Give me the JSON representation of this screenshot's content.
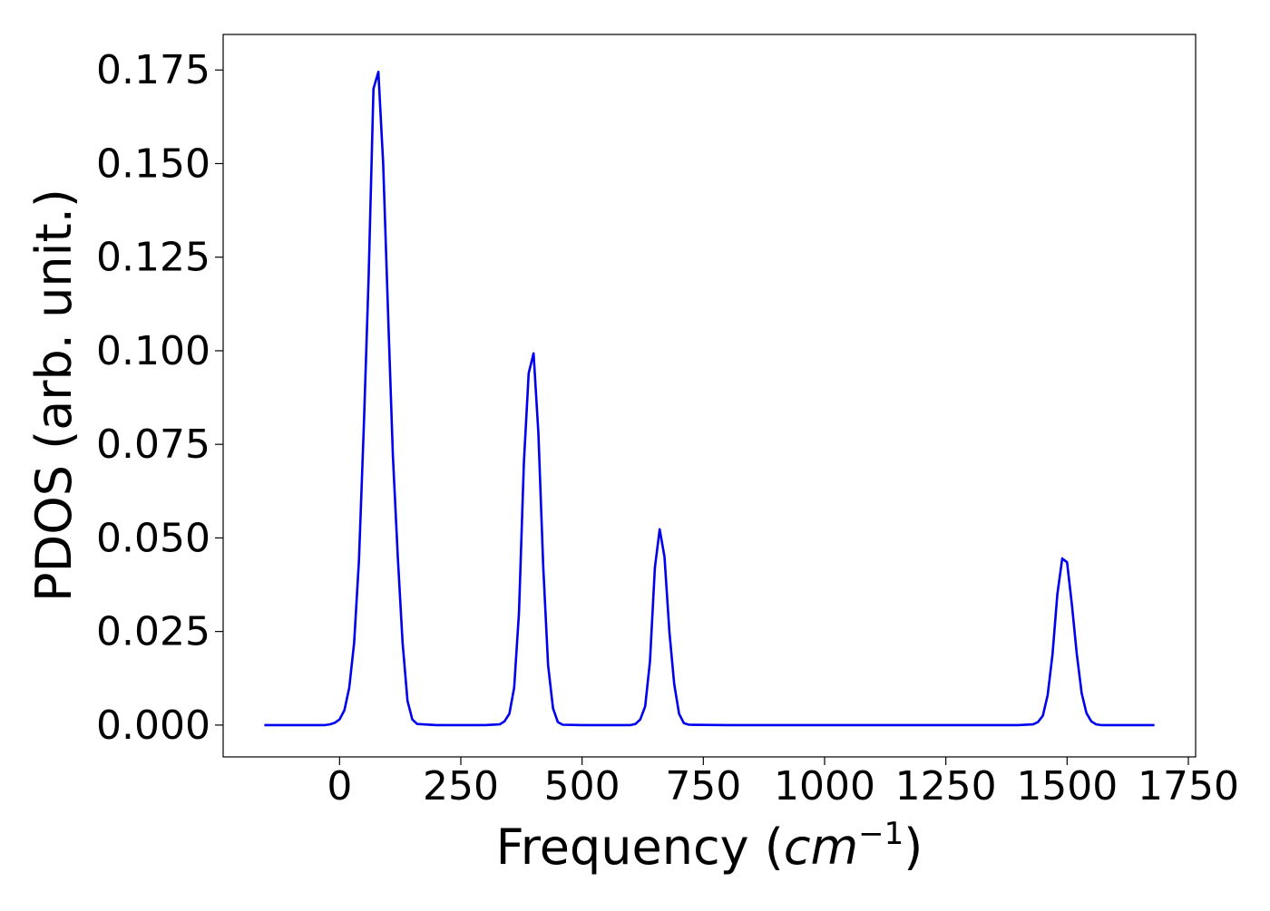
{
  "chart_data": {
    "type": "line",
    "title": "",
    "xlabel": "Frequency",
    "xlabel_unit_base": "cm",
    "xlabel_unit_exp": "−1",
    "ylabel": "PDOS (arb. unit.)",
    "xlim": [
      -240,
      1765
    ],
    "ylim": [
      -0.0085,
      0.1845
    ],
    "xticks": [
      0,
      250,
      500,
      750,
      1000,
      1250,
      1500,
      1750
    ],
    "xtick_labels": [
      "0",
      "250",
      "500",
      "750",
      "1000",
      "1250",
      "1500",
      "1750"
    ],
    "yticks": [
      0.0,
      0.025,
      0.05,
      0.075,
      0.1,
      0.125,
      0.15,
      0.175
    ],
    "ytick_labels": [
      "0.000",
      "0.025",
      "0.050",
      "0.075",
      "0.100",
      "0.125",
      "0.150",
      "0.175"
    ],
    "grid": false,
    "legend": "none",
    "series": [
      {
        "color": "#0000ee",
        "x": [
          -155,
          -100,
          -50,
          -30,
          -20,
          -10,
          0,
          10,
          20,
          30,
          40,
          50,
          60,
          70,
          80,
          90,
          100,
          110,
          120,
          130,
          140,
          150,
          160,
          200,
          250,
          300,
          330,
          340,
          350,
          360,
          370,
          380,
          390,
          400,
          410,
          420,
          430,
          440,
          450,
          460,
          500,
          550,
          600,
          610,
          620,
          630,
          640,
          650,
          660,
          670,
          680,
          690,
          700,
          710,
          720,
          800,
          1000,
          1200,
          1400,
          1430,
          1440,
          1450,
          1460,
          1470,
          1480,
          1490,
          1500,
          1510,
          1520,
          1530,
          1540,
          1550,
          1560,
          1570,
          1580,
          1600,
          1680
        ],
        "y": [
          0,
          0,
          0,
          0,
          0.0002,
          0.0006,
          0.0015,
          0.004,
          0.01,
          0.022,
          0.044,
          0.08,
          0.12,
          0.17,
          0.1745,
          0.15,
          0.11,
          0.072,
          0.045,
          0.022,
          0.0065,
          0.0015,
          0.0003,
          0,
          0,
          0,
          0.0002,
          0.001,
          0.003,
          0.01,
          0.03,
          0.07,
          0.094,
          0.0993,
          0.078,
          0.042,
          0.016,
          0.0045,
          0.0008,
          0.0001,
          0,
          0,
          0,
          0.0003,
          0.0015,
          0.005,
          0.017,
          0.042,
          0.0523,
          0.045,
          0.025,
          0.011,
          0.003,
          0.0005,
          0.0001,
          0,
          0,
          0,
          0,
          0.0002,
          0.0008,
          0.0025,
          0.008,
          0.019,
          0.035,
          0.0445,
          0.0435,
          0.032,
          0.019,
          0.0085,
          0.0032,
          0.001,
          0.0002,
          0,
          0,
          0,
          0
        ]
      }
    ]
  }
}
